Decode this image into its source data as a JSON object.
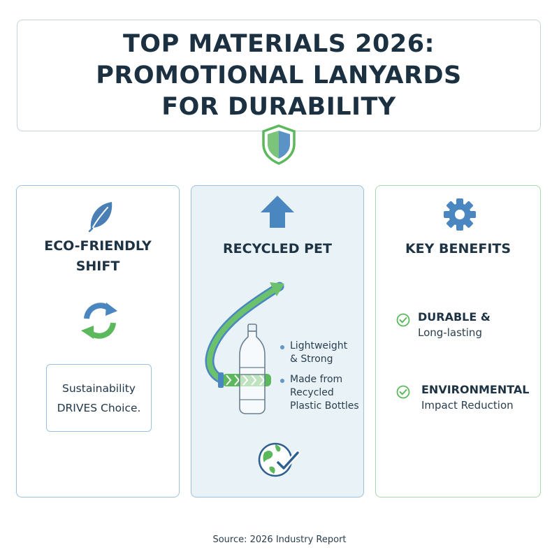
{
  "title": {
    "line1": "TOP MATERIALS 2026:",
    "line2": "PROMOTIONAL LANYARDS",
    "line3": "FOR DURABILITY"
  },
  "card1": {
    "title_line1": "ECO-FRIENDLY",
    "title_line2": "SHIFT",
    "note_line1": "Sustainability",
    "note_line2": "DRIVES Choice."
  },
  "card2": {
    "title": "RECYCLED PET",
    "bullets": [
      {
        "line1": "Lightweight",
        "line2": "& Strong"
      },
      {
        "line1": "Made from",
        "line2": "Recycled",
        "line3": "Plastic Bottles"
      }
    ]
  },
  "card3": {
    "title": "KEY BENEFITS",
    "benefits": [
      {
        "head": "DURABLE &",
        "sub": "Long-lasting"
      },
      {
        "head": "ENVIRONMENTAL",
        "sub": "Impact Reduction"
      }
    ]
  },
  "footer": {
    "source": "Source: 2026 Industry Report"
  },
  "colors": {
    "blue": "#4a86c0",
    "green": "#5cb85c",
    "dark_text": "#1b3142",
    "card2_bg": "#e8f2f7"
  },
  "icons": [
    "shield-icon",
    "leaf-icon",
    "recycle-icon",
    "up-arrow-icon",
    "bottle-icon",
    "lanyard-arrow-icon",
    "globe-check-icon",
    "gear-icon",
    "check-circle-icon"
  ]
}
